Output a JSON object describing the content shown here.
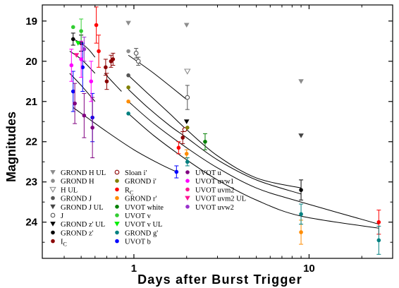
{
  "chart_data": {
    "type": "scatter",
    "xscale": "log",
    "xlabel": "Days after Burst Trigger",
    "ylabel": "Magnitudes",
    "xlim": [
      0.3,
      30
    ],
    "ylim": [
      24.9,
      18.6
    ],
    "y_inverted": true,
    "grid": false,
    "legend_position": "lower-left",
    "x_tick_labels": [
      "1",
      "10"
    ],
    "x_major_ticks": [
      1,
      10
    ],
    "y_tick_values": [
      19,
      20,
      21,
      22,
      23,
      24
    ],
    "y_tick_labels": [
      "19",
      "20",
      "21",
      "22",
      "23",
      "24"
    ],
    "series": [
      {
        "name": "GROND H UL",
        "color": "#8c8c8c",
        "marker": "tri-down",
        "points": [
          {
            "x": 0.93,
            "y": 19.05
          },
          {
            "x": 2.0,
            "y": 19.1
          },
          {
            "x": 9.0,
            "y": 20.5
          }
        ]
      },
      {
        "name": "GROND H",
        "color": "#8c8c8c",
        "marker": "circle",
        "points": [
          {
            "x": 0.93,
            "y": 19.75
          }
        ]
      },
      {
        "name": "H UL",
        "color": "#8c8c8c",
        "marker": "tri-down-open",
        "points": [
          {
            "x": 2.02,
            "y": 20.25
          }
        ]
      },
      {
        "name": "GROND J",
        "color": "#555555",
        "marker": "circle",
        "points": [
          {
            "x": 0.93,
            "y": 20.35
          }
        ]
      },
      {
        "name": "GROND J UL",
        "color": "#444444",
        "marker": "tri-down",
        "points": [
          {
            "x": 9.0,
            "y": 21.85
          }
        ]
      },
      {
        "name": "J",
        "color": "#555555",
        "marker": "circle-open",
        "points": [
          {
            "x": 1.03,
            "y": 19.8,
            "err": 0.12
          },
          {
            "x": 1.06,
            "y": 20.0,
            "err": 0.1
          },
          {
            "x": 2.02,
            "y": 20.9,
            "err": 0.3
          }
        ]
      },
      {
        "name": "GROND z' UL",
        "color": "#000000",
        "marker": "tri-down",
        "points": [
          {
            "x": 2.0,
            "y": 21.5
          }
        ]
      },
      {
        "name": "GROND z'",
        "color": "#000000",
        "marker": "circle",
        "points": [
          {
            "x": 0.45,
            "y": 19.45,
            "err": 0.15
          },
          {
            "x": 0.5,
            "y": 19.55,
            "err": 0.2
          },
          {
            "x": 9.0,
            "y": 23.2,
            "err": 0.25
          }
        ]
      },
      {
        "name": "IC",
        "color": "#8b0000",
        "marker": "circle",
        "points": [
          {
            "x": 0.69,
            "y": 20.15,
            "err": 0.2
          },
          {
            "x": 0.7,
            "y": 20.5,
            "err": 0.2
          },
          {
            "x": 0.74,
            "y": 20.0,
            "err": 0.15
          },
          {
            "x": 0.76,
            "y": 19.95,
            "err": 0.15
          },
          {
            "x": 1.9,
            "y": 21.9,
            "err": 0.15
          }
        ]
      },
      {
        "name": "Sloan i'",
        "color": "#8b0000",
        "marker": "circle-open",
        "points": [
          {
            "x": 1.95,
            "y": 21.7
          }
        ]
      },
      {
        "name": "GROND i'",
        "color": "#808000",
        "marker": "circle",
        "points": [
          {
            "x": 0.93,
            "y": 20.65
          },
          {
            "x": 2.02,
            "y": 21.65
          }
        ]
      },
      {
        "name": "RC",
        "color": "#ff0000",
        "marker": "circle",
        "points": [
          {
            "x": 0.61,
            "y": 19.1,
            "err": 0.45
          },
          {
            "x": 0.63,
            "y": 19.75,
            "err": 0.4
          },
          {
            "x": 1.8,
            "y": 22.15,
            "err": 0.15
          },
          {
            "x": 25.0,
            "y": 24.0,
            "err": 0.3
          }
        ]
      },
      {
        "name": "GROND r'",
        "color": "#ff8c00",
        "marker": "circle",
        "points": [
          {
            "x": 0.93,
            "y": 21.0
          },
          {
            "x": 2.0,
            "y": 22.3,
            "err": 0.1
          },
          {
            "x": 9.0,
            "y": 24.25,
            "err": 0.3
          }
        ]
      },
      {
        "name": "UVOT white",
        "color": "#008000",
        "marker": "circle",
        "points": [
          {
            "x": 2.55,
            "y": 22.0,
            "err": 0.2
          }
        ]
      },
      {
        "name": "UVOT v",
        "color": "#32cd32",
        "marker": "circle",
        "points": [
          {
            "x": 0.45,
            "y": 19.15
          },
          {
            "x": 0.5,
            "y": 19.25,
            "err": 0.3
          }
        ]
      },
      {
        "name": "UVOT v UL",
        "color": "#00ee00",
        "marker": "tri-down",
        "points": [
          {
            "x": 0.48,
            "y": 19.55
          }
        ]
      },
      {
        "name": "GROND g'",
        "color": "#008080",
        "marker": "circle",
        "points": [
          {
            "x": 0.93,
            "y": 21.3
          },
          {
            "x": 2.02,
            "y": 22.5,
            "err": 0.1
          },
          {
            "x": 9.0,
            "y": 23.8,
            "err": 0.25
          },
          {
            "x": 25.0,
            "y": 24.45,
            "err": 0.35
          }
        ]
      },
      {
        "name": "UVOT b",
        "color": "#0000ff",
        "marker": "circle",
        "points": [
          {
            "x": 0.45,
            "y": 20.75,
            "err": 0.5
          },
          {
            "x": 0.51,
            "y": 20.15,
            "err": 0.6
          },
          {
            "x": 0.58,
            "y": 21.4,
            "err": 0.6
          },
          {
            "x": 1.75,
            "y": 22.75,
            "err": 0.15
          }
        ]
      },
      {
        "name": "UVOT u",
        "color": "#800080",
        "marker": "circle",
        "points": [
          {
            "x": 0.46,
            "y": 21.05,
            "err": 0.5
          },
          {
            "x": 0.52,
            "y": 21.35,
            "err": 0.55
          },
          {
            "x": 0.58,
            "y": 21.65,
            "err": 0.75
          }
        ]
      },
      {
        "name": "UVOT uvw1",
        "color": "#ff00ff",
        "marker": "circle",
        "points": [
          {
            "x": 0.44,
            "y": 20.1,
            "err": 0.4
          },
          {
            "x": 0.5,
            "y": 19.95,
            "err": 0.45
          },
          {
            "x": 0.57,
            "y": 20.5,
            "err": 0.5
          }
        ]
      },
      {
        "name": "UVOT uvm2",
        "color": "#ff1493",
        "marker": "circle",
        "points": []
      },
      {
        "name": "UVOT uvm2 UL",
        "color": "#ff1493",
        "marker": "tri-down",
        "points": [
          {
            "x": 0.47,
            "y": 19.85
          }
        ]
      },
      {
        "name": "UVOT uvw2",
        "color": "#9932cc",
        "marker": "circle",
        "points": [
          {
            "x": 0.52,
            "y": 19.7,
            "err": 0.3
          }
        ]
      }
    ],
    "fit_curves": [
      [
        {
          "x": 0.45,
          "y": 19.45
        },
        {
          "x": 0.5,
          "y": 19.55
        },
        {
          "x": 0.55,
          "y": 19.7
        },
        {
          "x": 0.6,
          "y": 19.9
        }
      ],
      [
        {
          "x": 0.43,
          "y": 19.75
        },
        {
          "x": 0.5,
          "y": 19.95
        },
        {
          "x": 0.6,
          "y": 20.3
        }
      ],
      [
        {
          "x": 0.43,
          "y": 20.3
        },
        {
          "x": 0.5,
          "y": 20.6
        },
        {
          "x": 0.6,
          "y": 21.0
        }
      ],
      [
        {
          "x": 0.68,
          "y": 20.3
        },
        {
          "x": 0.75,
          "y": 20.5
        },
        {
          "x": 0.85,
          "y": 20.75
        }
      ],
      [
        {
          "x": 0.93,
          "y": 19.85
        },
        {
          "x": 1.3,
          "y": 20.3
        },
        {
          "x": 2.0,
          "y": 20.95
        }
      ],
      [
        {
          "x": 0.93,
          "y": 20.35
        },
        {
          "x": 1.2,
          "y": 20.8
        },
        {
          "x": 1.6,
          "y": 21.3
        },
        {
          "x": 2.0,
          "y": 21.7
        },
        {
          "x": 3.0,
          "y": 22.35
        },
        {
          "x": 5.0,
          "y": 22.9
        },
        {
          "x": 9.0,
          "y": 23.15
        }
      ],
      [
        {
          "x": 0.93,
          "y": 20.7
        },
        {
          "x": 1.2,
          "y": 21.15
        },
        {
          "x": 1.6,
          "y": 21.6
        },
        {
          "x": 2.0,
          "y": 21.9
        },
        {
          "x": 3.0,
          "y": 22.45
        },
        {
          "x": 5.0,
          "y": 22.95
        },
        {
          "x": 9.0,
          "y": 23.3
        }
      ],
      [
        {
          "x": 0.93,
          "y": 21.0
        },
        {
          "x": 1.3,
          "y": 21.55
        },
        {
          "x": 2.0,
          "y": 22.15
        },
        {
          "x": 3.0,
          "y": 22.65
        },
        {
          "x": 5.0,
          "y": 23.15
        },
        {
          "x": 9.0,
          "y": 23.5
        },
        {
          "x": 25.0,
          "y": 24.05
        }
      ],
      [
        {
          "x": 0.93,
          "y": 21.3
        },
        {
          "x": 1.3,
          "y": 21.85
        },
        {
          "x": 2.0,
          "y": 22.45
        },
        {
          "x": 3.0,
          "y": 22.95
        },
        {
          "x": 5.0,
          "y": 23.45
        },
        {
          "x": 9.0,
          "y": 23.85
        },
        {
          "x": 25.0,
          "y": 24.15
        }
      ],
      [
        {
          "x": 0.45,
          "y": 21.15
        },
        {
          "x": 0.7,
          "y": 21.75
        },
        {
          "x": 1.0,
          "y": 22.2
        },
        {
          "x": 1.4,
          "y": 22.55
        },
        {
          "x": 1.75,
          "y": 22.75
        }
      ]
    ]
  },
  "legend": [
    {
      "label": "GROND H UL",
      "color": "#8c8c8c",
      "marker": "tri-down",
      "column": 1
    },
    {
      "label": "GROND H",
      "color": "#8c8c8c",
      "marker": "circle",
      "column": 1
    },
    {
      "label": "H UL",
      "color": "#8c8c8c",
      "marker": "tri-down-open",
      "column": 1
    },
    {
      "label": "GROND J",
      "color": "#555555",
      "marker": "circle",
      "column": 1
    },
    {
      "label": "GROND J UL",
      "color": "#444444",
      "marker": "tri-down",
      "column": 1
    },
    {
      "label": "J",
      "color": "#555555",
      "marker": "circle-open",
      "column": 1
    },
    {
      "label": "GROND z' UL",
      "color": "#000000",
      "marker": "tri-down",
      "column": 1
    },
    {
      "label": "GROND z'",
      "color": "#000000",
      "marker": "circle",
      "column": 1
    },
    {
      "label": "I",
      "sub": "C",
      "color": "#8b0000",
      "marker": "circle",
      "column": 1
    },
    {
      "label": "Sloan i'",
      "color": "#8b0000",
      "marker": "circle-open",
      "column": 2
    },
    {
      "label": "GROND i'",
      "color": "#808000",
      "marker": "circle",
      "column": 2
    },
    {
      "label": "R",
      "sub": "C",
      "color": "#ff0000",
      "marker": "circle",
      "column": 2
    },
    {
      "label": "GROND r'",
      "color": "#ff8c00",
      "marker": "circle",
      "column": 2
    },
    {
      "label": "UVOT white",
      "color": "#008000",
      "marker": "circle",
      "column": 2
    },
    {
      "label": "UVOT v",
      "color": "#32cd32",
      "marker": "circle",
      "column": 2
    },
    {
      "label": "UVOT v UL",
      "color": "#00ee00",
      "marker": "tri-down",
      "column": 2
    },
    {
      "label": "GROND g'",
      "color": "#008080",
      "marker": "circle",
      "column": 2
    },
    {
      "label": "UVOT b",
      "color": "#0000ff",
      "marker": "circle",
      "column": 2
    },
    {
      "label": "UVOT u",
      "color": "#800080",
      "marker": "circle",
      "column": 3
    },
    {
      "label": "UVOT uvw1",
      "color": "#ff00ff",
      "marker": "circle",
      "column": 3
    },
    {
      "label": "UVOT uvm2",
      "color": "#ff1493",
      "marker": "circle",
      "column": 3
    },
    {
      "label": "UVOT uvm2 UL",
      "color": "#ff1493",
      "marker": "tri-down",
      "column": 3
    },
    {
      "label": "UVOT uvw2",
      "color": "#9932cc",
      "marker": "circle",
      "column": 3
    }
  ]
}
